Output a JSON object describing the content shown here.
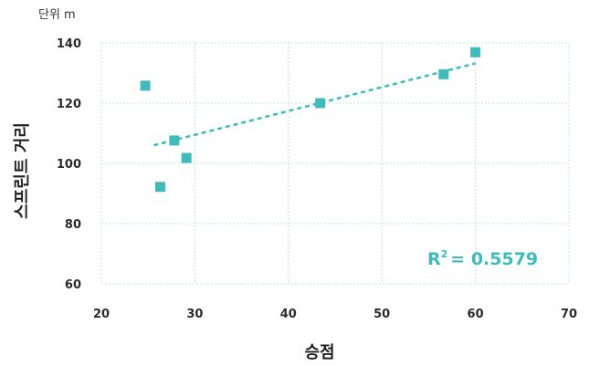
{
  "chart_data": {
    "type": "scatter",
    "unit_label": "단위 m",
    "xlabel": "승점",
    "ylabel": "스프린트 거리",
    "xlim": [
      20,
      70
    ],
    "ylim": [
      60,
      140
    ],
    "xticks": [
      20,
      30,
      40,
      50,
      60,
      70
    ],
    "yticks": [
      60,
      80,
      100,
      120,
      140
    ],
    "grid": true,
    "points": [
      {
        "x": 24.7,
        "y": 125.8
      },
      {
        "x": 26.3,
        "y": 92.2
      },
      {
        "x": 27.8,
        "y": 107.6
      },
      {
        "x": 29.1,
        "y": 101.8
      },
      {
        "x": 43.4,
        "y": 120.0
      },
      {
        "x": 56.6,
        "y": 129.6
      },
      {
        "x": 60.0,
        "y": 136.9
      }
    ],
    "trendline": {
      "x_start": 25.6,
      "y_start": 106.0,
      "x_end": 60.0,
      "y_end": 133.2
    },
    "r2_label": "R",
    "r2_sup": "2",
    "r2_value": "= 0.5579",
    "colors": {
      "marker": "#3ebcbc",
      "trendline": "#3ebcbc",
      "grid": "#bfe3e3",
      "r2": "#3ebcbc"
    }
  }
}
